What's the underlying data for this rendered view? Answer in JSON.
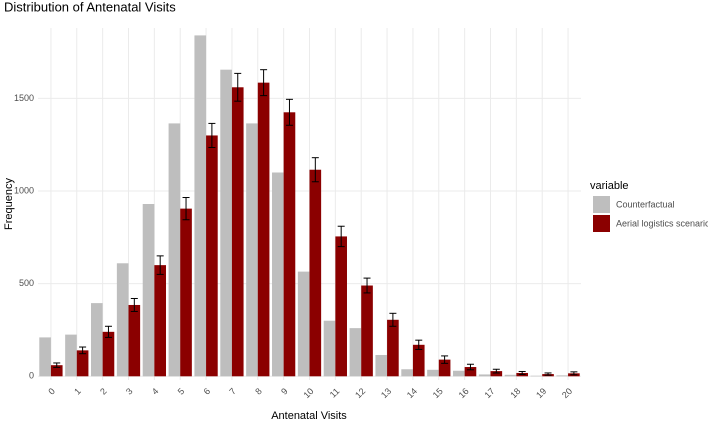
{
  "chart_data": {
    "type": "bar",
    "title": "Distribution of Antenatal Visits",
    "xlabel": "Antenatal Visits",
    "ylabel": "Frequency",
    "legend_title": "variable",
    "categories": [
      "0",
      "1",
      "2",
      "3",
      "4",
      "5",
      "6",
      "7",
      "8",
      "9",
      "10",
      "11",
      "12",
      "13",
      "14",
      "15",
      "16",
      "17",
      "18",
      "19",
      "20"
    ],
    "series": [
      {
        "name": "Counterfactual",
        "color": "#bebebe",
        "values": [
          210,
          225,
          395,
          610,
          930,
          1365,
          1840,
          1655,
          1365,
          1100,
          565,
          300,
          260,
          115,
          38,
          35,
          30,
          10,
          8,
          3,
          5
        ]
      },
      {
        "name": "Aerial logistics scenario",
        "color": "#8b0000",
        "values": [
          60,
          140,
          240,
          385,
          600,
          905,
          1300,
          1560,
          1585,
          1425,
          1115,
          755,
          490,
          305,
          170,
          90,
          50,
          28,
          18,
          12,
          16
        ],
        "errors": [
          12,
          18,
          30,
          35,
          50,
          60,
          65,
          75,
          70,
          70,
          65,
          55,
          40,
          35,
          25,
          20,
          15,
          10,
          8,
          6,
          8
        ]
      }
    ],
    "ylim": [
      -20,
      1880
    ],
    "yticks": [
      0,
      500,
      1000,
      1500
    ],
    "grid": true,
    "legend": "right"
  }
}
